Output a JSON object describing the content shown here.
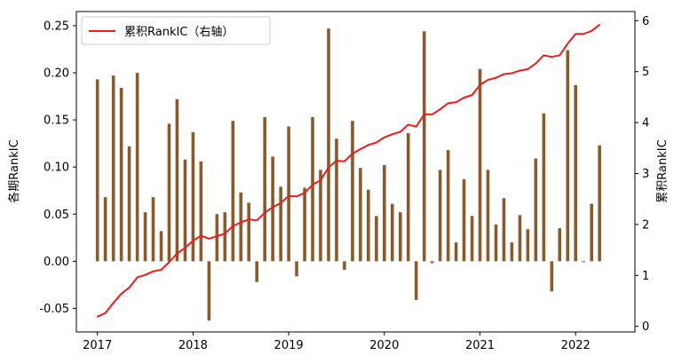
{
  "chart_data": {
    "type": "bar",
    "title": "",
    "xlabel": "",
    "ylabel": "各期RankIC",
    "ylabel_right": "累积RankIC",
    "legend": {
      "position": "top-left",
      "label": "累积RankIC（右轴）"
    },
    "grid": false,
    "ylim": [
      -0.075,
      0.265
    ],
    "ylim_right": [
      -0.11,
      6.18
    ],
    "xlim": [
      2016.78,
      2022.62
    ],
    "x_ticks": [
      2017,
      2018,
      2019,
      2020,
      2021,
      2022
    ],
    "x_tick_labels": [
      "2017",
      "2018",
      "2019",
      "2020",
      "2021",
      "2022"
    ],
    "y_ticks": [
      -0.05,
      0.0,
      0.05,
      0.1,
      0.15,
      0.2,
      0.25
    ],
    "y_tick_labels": [
      "-0.05",
      "0.00",
      "0.05",
      "0.10",
      "0.15",
      "0.20",
      "0.25"
    ],
    "y_ticks_right": [
      0,
      1,
      2,
      3,
      4,
      5,
      6
    ],
    "y_tick_labels_right": [
      "0",
      "1",
      "2",
      "3",
      "4",
      "5",
      "6"
    ],
    "colors": {
      "bar": "#8B5A2B",
      "line": "#ee1c1c"
    },
    "series": [
      {
        "type": "bar",
        "axis": "left",
        "x": [
          2017.0,
          2017.083,
          2017.167,
          2017.25,
          2017.333,
          2017.417,
          2017.5,
          2017.583,
          2017.667,
          2017.75,
          2017.833,
          2017.917,
          2018.0,
          2018.083,
          2018.167,
          2018.25,
          2018.333,
          2018.417,
          2018.5,
          2018.583,
          2018.667,
          2018.75,
          2018.833,
          2018.917,
          2019.0,
          2019.083,
          2019.167,
          2019.25,
          2019.333,
          2019.417,
          2019.5,
          2019.583,
          2019.667,
          2019.75,
          2019.833,
          2019.917,
          2020.0,
          2020.083,
          2020.167,
          2020.25,
          2020.333,
          2020.417,
          2020.5,
          2020.583,
          2020.667,
          2020.75,
          2020.833,
          2020.917,
          2021.0,
          2021.083,
          2021.167,
          2021.25,
          2021.333,
          2021.417,
          2021.5,
          2021.583,
          2021.667,
          2021.75,
          2021.833,
          2021.917,
          2022.0,
          2022.083,
          2022.167,
          2022.25
        ],
        "values": [
          0.193,
          0.068,
          0.197,
          0.184,
          0.122,
          0.2,
          0.052,
          0.068,
          0.032,
          0.146,
          0.172,
          0.108,
          0.137,
          0.106,
          -0.063,
          0.05,
          0.052,
          0.149,
          0.073,
          0.062,
          -0.022,
          0.153,
          0.111,
          0.079,
          0.143,
          -0.016,
          0.078,
          0.153,
          0.097,
          0.247,
          0.13,
          -0.009,
          0.149,
          0.099,
          0.076,
          0.048,
          0.102,
          0.061,
          0.052,
          0.136,
          -0.041,
          0.244,
          -0.002,
          0.097,
          0.118,
          0.02,
          0.087,
          0.048,
          0.204,
          0.097,
          0.039,
          0.067,
          0.02,
          0.049,
          0.034,
          0.109,
          0.157,
          -0.032,
          0.035,
          0.224,
          0.187,
          -0.001,
          0.061,
          0.123
        ]
      },
      {
        "type": "line",
        "axis": "right",
        "name": "累积RankIC（右轴）",
        "x": [
          2017.0,
          2017.083,
          2017.167,
          2017.25,
          2017.333,
          2017.417,
          2017.5,
          2017.583,
          2017.667,
          2017.75,
          2017.833,
          2017.917,
          2018.0,
          2018.083,
          2018.167,
          2018.25,
          2018.333,
          2018.417,
          2018.5,
          2018.583,
          2018.667,
          2018.75,
          2018.833,
          2018.917,
          2019.0,
          2019.083,
          2019.167,
          2019.25,
          2019.333,
          2019.417,
          2019.5,
          2019.583,
          2019.667,
          2019.75,
          2019.833,
          2019.917,
          2020.0,
          2020.083,
          2020.167,
          2020.25,
          2020.333,
          2020.417,
          2020.5,
          2020.583,
          2020.667,
          2020.75,
          2020.833,
          2020.917,
          2021.0,
          2021.083,
          2021.167,
          2021.25,
          2021.333,
          2021.417,
          2021.5,
          2021.583,
          2021.667,
          2021.75,
          2021.833,
          2021.917,
          2022.0,
          2022.083,
          2022.167,
          2022.25
        ],
        "values": [
          0.19,
          0.26,
          0.46,
          0.64,
          0.76,
          0.96,
          1.01,
          1.08,
          1.11,
          1.26,
          1.43,
          1.54,
          1.68,
          1.78,
          1.72,
          1.77,
          1.82,
          1.97,
          2.04,
          2.1,
          2.08,
          2.23,
          2.34,
          2.42,
          2.56,
          2.55,
          2.62,
          2.78,
          2.87,
          3.12,
          3.25,
          3.24,
          3.39,
          3.48,
          3.56,
          3.61,
          3.71,
          3.77,
          3.82,
          3.96,
          3.92,
          4.16,
          4.16,
          4.26,
          4.38,
          4.4,
          4.49,
          4.54,
          4.74,
          4.84,
          4.88,
          4.95,
          4.97,
          5.02,
          5.05,
          5.16,
          5.32,
          5.29,
          5.32,
          5.55,
          5.74,
          5.74,
          5.8,
          5.92
        ]
      }
    ]
  }
}
